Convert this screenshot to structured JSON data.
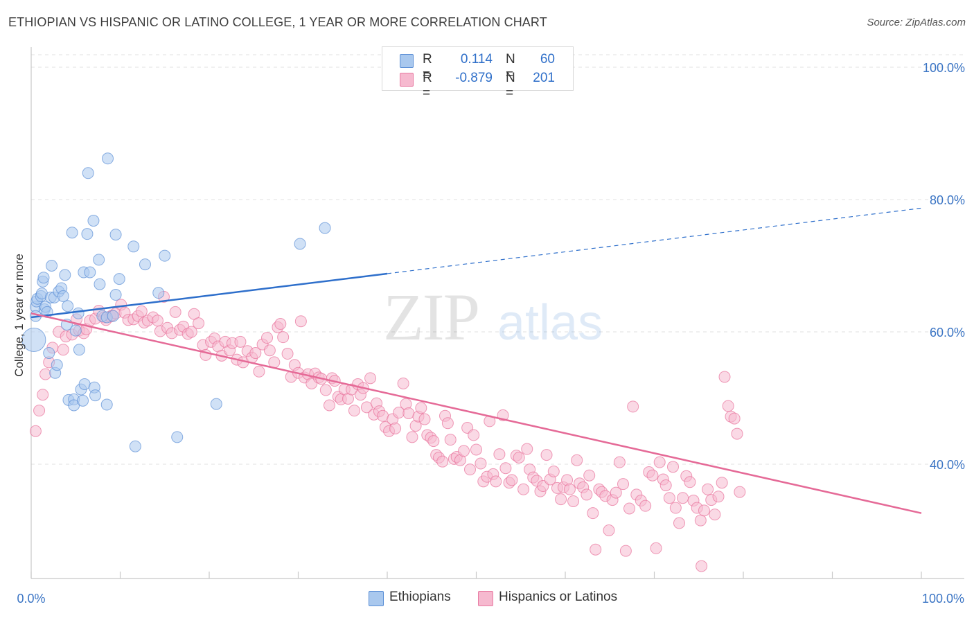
{
  "title": "ETHIOPIAN VS HISPANIC OR LATINO COLLEGE, 1 YEAR OR MORE CORRELATION CHART",
  "source": "Source: ZipAtlas.com",
  "watermark": {
    "part1": "ZIP",
    "part2": "atlas"
  },
  "legend": {
    "r_label": "R =",
    "n_label": "N =",
    "rows": [
      {
        "r": "0.114",
        "n": "60",
        "fill": "#a9c8ee",
        "stroke": "#5b8fd6",
        "textColor": "#2f6fc9"
      },
      {
        "r": "-0.879",
        "n": "201",
        "fill": "#f6b9cf",
        "stroke": "#e87aa2",
        "textColor": "#2f6fc9"
      }
    ]
  },
  "bottom_legend": [
    "Ethiopians",
    "Hispanics or Latinos"
  ],
  "chart_data": {
    "type": "scatter",
    "title": "ETHIOPIAN VS HISPANIC OR LATINO COLLEGE, 1 YEAR OR MORE CORRELATION CHART",
    "xlabel": "",
    "ylabel": "College, 1 year or more",
    "xlim": [
      0,
      100
    ],
    "ylim": [
      19,
      100
    ],
    "x_tick_labels": [
      "0.0%",
      "100.0%"
    ],
    "y_ticks": [
      40,
      60,
      80,
      100
    ],
    "y_tick_labels": [
      "40.0%",
      "60.0%",
      "80.0%",
      "100.0%"
    ],
    "grid": true,
    "legend_position": "top-center",
    "series": [
      {
        "name": "Ethiopians",
        "color": "#5b8fd6",
        "fill": "#a9c8ee",
        "R": 0.114,
        "N": 60,
        "trend": {
          "x0": 0,
          "y0": 62.2,
          "x1": 40,
          "y1": 68.8,
          "dashed_to": {
            "x": 100,
            "y": 78.7
          }
        },
        "points": [
          [
            0.3,
            58.8
          ],
          [
            0.5,
            63.8
          ],
          [
            0.5,
            62.4
          ],
          [
            0.6,
            64.6
          ],
          [
            0.7,
            65.0
          ],
          [
            1.1,
            65.4
          ],
          [
            1.2,
            65.8
          ],
          [
            1.3,
            67.6
          ],
          [
            1.4,
            68.2
          ],
          [
            1.5,
            63.4
          ],
          [
            1.6,
            63.8
          ],
          [
            1.8,
            63.0
          ],
          [
            2.0,
            56.8
          ],
          [
            2.2,
            65.2
          ],
          [
            2.3,
            70.0
          ],
          [
            2.6,
            65.2
          ],
          [
            2.7,
            53.8
          ],
          [
            2.9,
            55.0
          ],
          [
            3.1,
            66.1
          ],
          [
            3.4,
            66.6
          ],
          [
            3.6,
            65.4
          ],
          [
            3.8,
            68.6
          ],
          [
            4.0,
            61.1
          ],
          [
            4.1,
            63.9
          ],
          [
            4.2,
            49.7
          ],
          [
            4.6,
            75.0
          ],
          [
            4.8,
            49.8
          ],
          [
            4.8,
            48.9
          ],
          [
            5.0,
            60.2
          ],
          [
            5.3,
            62.8
          ],
          [
            5.4,
            57.3
          ],
          [
            5.6,
            51.3
          ],
          [
            5.8,
            49.6
          ],
          [
            5.9,
            69.0
          ],
          [
            6.0,
            52.1
          ],
          [
            6.3,
            74.8
          ],
          [
            6.4,
            84.0
          ],
          [
            6.6,
            69.0
          ],
          [
            7.0,
            76.8
          ],
          [
            7.1,
            51.6
          ],
          [
            7.2,
            50.4
          ],
          [
            7.6,
            70.9
          ],
          [
            7.7,
            67.2
          ],
          [
            8.0,
            62.4
          ],
          [
            8.5,
            62.2
          ],
          [
            8.5,
            49.0
          ],
          [
            8.6,
            86.2
          ],
          [
            9.2,
            62.4
          ],
          [
            9.5,
            74.7
          ],
          [
            9.5,
            65.6
          ],
          [
            9.9,
            68.0
          ],
          [
            11.5,
            72.9
          ],
          [
            11.7,
            42.7
          ],
          [
            12.8,
            70.2
          ],
          [
            14.3,
            65.9
          ],
          [
            15.0,
            71.5
          ],
          [
            16.4,
            44.1
          ],
          [
            20.8,
            49.1
          ],
          [
            30.2,
            73.3
          ],
          [
            33.0,
            75.7
          ]
        ]
      },
      {
        "name": "Hispanics or Latinos",
        "color": "#e8709a",
        "fill": "#f6b9cf",
        "R": -0.879,
        "N": 201,
        "trend": {
          "x0": 0,
          "y0": 62.8,
          "x1": 100,
          "y1": 32.6
        },
        "points": [
          [
            0.5,
            45.0
          ],
          [
            0.9,
            48.1
          ],
          [
            1.3,
            50.5
          ],
          [
            1.6,
            53.6
          ],
          [
            2.0,
            55.4
          ],
          [
            2.4,
            57.6
          ],
          [
            3.1,
            60.0
          ],
          [
            3.6,
            57.3
          ],
          [
            3.9,
            59.3
          ],
          [
            4.6,
            59.6
          ],
          [
            5.1,
            61.9
          ],
          [
            5.4,
            60.2
          ],
          [
            5.9,
            59.8
          ],
          [
            6.2,
            60.4
          ],
          [
            6.6,
            61.7
          ],
          [
            7.2,
            62.0
          ],
          [
            7.6,
            63.2
          ],
          [
            8.2,
            62.2
          ],
          [
            8.4,
            61.8
          ],
          [
            8.9,
            62.3
          ],
          [
            9.1,
            62.5
          ],
          [
            9.5,
            62.8
          ],
          [
            10.1,
            64.1
          ],
          [
            10.5,
            62.9
          ],
          [
            10.9,
            61.8
          ],
          [
            11.5,
            61.9
          ],
          [
            12.0,
            62.4
          ],
          [
            12.4,
            63.1
          ],
          [
            12.7,
            61.4
          ],
          [
            13.1,
            61.7
          ],
          [
            13.7,
            62.2
          ],
          [
            14.2,
            61.7
          ],
          [
            14.5,
            60.1
          ],
          [
            14.9,
            65.3
          ],
          [
            15.3,
            60.6
          ],
          [
            15.8,
            59.8
          ],
          [
            16.2,
            63.0
          ],
          [
            16.7,
            60.3
          ],
          [
            17.1,
            60.8
          ],
          [
            17.6,
            59.7
          ],
          [
            18.0,
            60.0
          ],
          [
            18.3,
            62.7
          ],
          [
            18.8,
            61.3
          ],
          [
            19.3,
            58.0
          ],
          [
            19.6,
            56.5
          ],
          [
            20.2,
            58.5
          ],
          [
            20.6,
            59.0
          ],
          [
            21.0,
            57.8
          ],
          [
            21.4,
            56.4
          ],
          [
            21.8,
            58.5
          ],
          [
            22.3,
            57.2
          ],
          [
            22.6,
            58.3
          ],
          [
            23.1,
            55.8
          ],
          [
            23.5,
            58.5
          ],
          [
            23.8,
            55.4
          ],
          [
            24.3,
            57.1
          ],
          [
            24.8,
            56.1
          ],
          [
            25.2,
            56.8
          ],
          [
            25.6,
            54.0
          ],
          [
            26.0,
            58.1
          ],
          [
            26.5,
            59.1
          ],
          [
            26.8,
            57.2
          ],
          [
            27.3,
            55.4
          ],
          [
            27.7,
            60.7
          ],
          [
            28.0,
            61.2
          ],
          [
            28.3,
            59.2
          ],
          [
            28.8,
            56.7
          ],
          [
            29.2,
            53.2
          ],
          [
            29.6,
            55.0
          ],
          [
            30.0,
            53.8
          ],
          [
            30.3,
            61.6
          ],
          [
            30.7,
            53.1
          ],
          [
            31.1,
            53.6
          ],
          [
            31.5,
            52.2
          ],
          [
            31.9,
            53.7
          ],
          [
            32.3,
            53.1
          ],
          [
            32.6,
            52.9
          ],
          [
            33.1,
            51.2
          ],
          [
            33.5,
            48.9
          ],
          [
            33.8,
            53.0
          ],
          [
            34.1,
            52.6
          ],
          [
            34.5,
            50.2
          ],
          [
            34.8,
            49.8
          ],
          [
            35.2,
            51.3
          ],
          [
            35.6,
            49.9
          ],
          [
            36.0,
            51.3
          ],
          [
            36.3,
            48.1
          ],
          [
            36.7,
            52.1
          ],
          [
            37.0,
            50.5
          ],
          [
            37.3,
            51.5
          ],
          [
            37.7,
            48.6
          ],
          [
            38.1,
            53.0
          ],
          [
            38.5,
            47.5
          ],
          [
            38.8,
            49.2
          ],
          [
            39.1,
            48.0
          ],
          [
            39.5,
            47.3
          ],
          [
            39.8,
            45.6
          ],
          [
            40.2,
            45.0
          ],
          [
            40.6,
            46.8
          ],
          [
            40.9,
            45.4
          ],
          [
            41.3,
            47.8
          ],
          [
            41.8,
            52.2
          ],
          [
            42.1,
            49.1
          ],
          [
            42.4,
            47.7
          ],
          [
            42.8,
            44.1
          ],
          [
            43.2,
            45.8
          ],
          [
            43.5,
            47.2
          ],
          [
            43.8,
            48.5
          ],
          [
            44.2,
            46.8
          ],
          [
            44.5,
            44.4
          ],
          [
            44.9,
            44.0
          ],
          [
            45.2,
            43.5
          ],
          [
            45.5,
            41.4
          ],
          [
            45.8,
            41.0
          ],
          [
            46.2,
            40.4
          ],
          [
            46.5,
            47.3
          ],
          [
            46.8,
            46.2
          ],
          [
            47.1,
            43.7
          ],
          [
            47.5,
            40.8
          ],
          [
            47.8,
            41.1
          ],
          [
            48.2,
            40.6
          ],
          [
            48.6,
            42.0
          ],
          [
            49.0,
            45.5
          ],
          [
            49.3,
            39.2
          ],
          [
            49.7,
            44.4
          ],
          [
            50.0,
            42.2
          ],
          [
            50.5,
            40.1
          ],
          [
            50.8,
            37.4
          ],
          [
            51.2,
            38.1
          ],
          [
            51.5,
            46.5
          ],
          [
            51.9,
            38.5
          ],
          [
            52.2,
            37.4
          ],
          [
            52.6,
            41.5
          ],
          [
            53.0,
            47.4
          ],
          [
            53.3,
            39.4
          ],
          [
            53.7,
            37.2
          ],
          [
            54.0,
            37.6
          ],
          [
            54.5,
            41.3
          ],
          [
            54.8,
            41.0
          ],
          [
            55.3,
            36.2
          ],
          [
            55.7,
            42.3
          ],
          [
            56.0,
            39.2
          ],
          [
            56.4,
            38.0
          ],
          [
            56.8,
            37.5
          ],
          [
            57.2,
            35.9
          ],
          [
            57.5,
            36.7
          ],
          [
            57.9,
            41.4
          ],
          [
            58.3,
            37.7
          ],
          [
            58.7,
            38.9
          ],
          [
            59.1,
            36.4
          ],
          [
            59.5,
            34.7
          ],
          [
            59.8,
            36.5
          ],
          [
            60.2,
            37.6
          ],
          [
            60.5,
            36.2
          ],
          [
            60.9,
            34.4
          ],
          [
            61.3,
            40.6
          ],
          [
            61.6,
            37.1
          ],
          [
            62.0,
            36.5
          ],
          [
            62.4,
            35.4
          ],
          [
            62.7,
            38.3
          ],
          [
            63.1,
            32.6
          ],
          [
            63.4,
            27.1
          ],
          [
            63.8,
            36.2
          ],
          [
            64.1,
            35.8
          ],
          [
            64.5,
            35.2
          ],
          [
            64.9,
            30.0
          ],
          [
            65.3,
            34.6
          ],
          [
            65.7,
            35.7
          ],
          [
            66.1,
            40.3
          ],
          [
            66.5,
            37.0
          ],
          [
            66.8,
            26.9
          ],
          [
            67.2,
            33.3
          ],
          [
            67.6,
            48.7
          ],
          [
            68.0,
            35.4
          ],
          [
            68.5,
            34.5
          ],
          [
            69.0,
            33.7
          ],
          [
            69.4,
            38.8
          ],
          [
            69.8,
            38.3
          ],
          [
            70.2,
            27.3
          ],
          [
            70.6,
            40.3
          ],
          [
            71.0,
            37.7
          ],
          [
            71.3,
            36.8
          ],
          [
            71.7,
            34.9
          ],
          [
            72.1,
            39.6
          ],
          [
            72.4,
            33.4
          ],
          [
            72.8,
            31.1
          ],
          [
            73.2,
            34.9
          ],
          [
            73.6,
            38.2
          ],
          [
            74.0,
            37.3
          ],
          [
            74.4,
            34.5
          ],
          [
            74.8,
            33.4
          ],
          [
            75.2,
            31.5
          ],
          [
            75.6,
            33.0
          ],
          [
            76.0,
            36.2
          ],
          [
            76.4,
            34.6
          ],
          [
            76.8,
            32.4
          ],
          [
            77.2,
            35.1
          ],
          [
            77.6,
            37.2
          ],
          [
            77.9,
            53.2
          ],
          [
            78.3,
            48.8
          ],
          [
            78.6,
            47.2
          ],
          [
            79.0,
            46.9
          ],
          [
            79.3,
            44.6
          ],
          [
            79.6,
            35.8
          ],
          [
            75.3,
            24.6
          ]
        ]
      }
    ]
  }
}
